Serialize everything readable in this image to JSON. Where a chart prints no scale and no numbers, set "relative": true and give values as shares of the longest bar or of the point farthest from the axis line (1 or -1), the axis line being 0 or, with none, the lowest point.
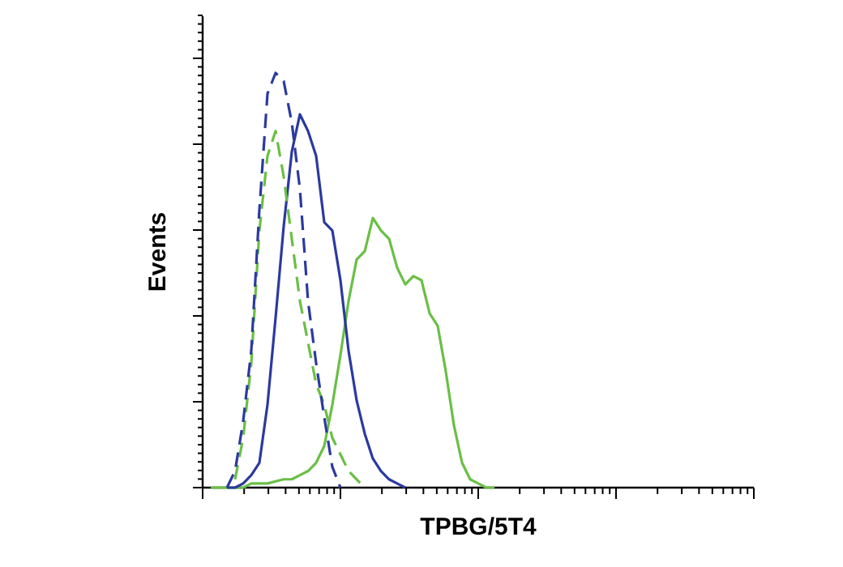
{
  "chart_data": {
    "type": "line",
    "relative": true,
    "xlabel": "TPBG/5T4",
    "ylabel": "Events",
    "categories": [
      null,
      null,
      null,
      null,
      null,
      null,
      null,
      null,
      null,
      null,
      null,
      null,
      null,
      null,
      null,
      null,
      null,
      null,
      null,
      null,
      null,
      null,
      null,
      null,
      null,
      null,
      null,
      null,
      null,
      null,
      null,
      null,
      null,
      null,
      null,
      null,
      null,
      null,
      null,
      null,
      null,
      null,
      null,
      null,
      null,
      null,
      null,
      null,
      null,
      null,
      null,
      null,
      null,
      null,
      null,
      null,
      null,
      null,
      null,
      null,
      null,
      null,
      null,
      null,
      null,
      null,
      null,
      null,
      null
    ],
    "series": [
      {
        "color": "#6abf45",
        "line_style": "solid",
        "values": [
          null,
          0,
          0,
          0,
          0,
          0,
          0.01,
          0.01,
          0.01,
          0.015,
          0.02,
          0.02,
          0.03,
          0.04,
          0.06,
          0.1,
          0.2,
          0.32,
          0.45,
          0.55,
          0.57,
          0.65,
          0.62,
          0.6,
          0.53,
          0.49,
          0.51,
          0.5,
          0.42,
          0.39,
          0.28,
          0.15,
          0.06,
          0.02,
          0.01,
          0,
          0,
          null,
          null,
          null,
          null,
          null,
          null,
          null,
          null,
          null,
          null,
          null,
          null,
          null,
          null,
          null,
          null,
          null,
          null,
          null,
          null,
          null,
          null,
          null,
          null,
          null,
          null,
          null,
          null,
          null,
          null,
          null,
          null
        ]
      },
      {
        "color": "#2b3a9f",
        "line_style": "solid",
        "values": [
          null,
          null,
          null,
          0,
          0,
          0.01,
          0.03,
          0.06,
          0.2,
          0.41,
          0.63,
          0.81,
          0.9,
          0.86,
          0.8,
          0.64,
          0.62,
          0.5,
          0.33,
          0.21,
          0.13,
          0.07,
          0.04,
          0.02,
          0.01,
          0,
          null,
          null,
          null,
          null,
          null,
          null,
          null,
          null,
          null,
          null,
          null,
          null,
          null,
          null,
          null,
          null,
          null,
          null,
          null,
          null,
          null,
          null,
          null,
          null,
          null,
          null,
          null,
          null,
          null,
          null,
          null,
          null,
          null,
          null,
          null,
          null,
          null,
          null,
          null,
          null,
          null,
          null,
          null
        ]
      },
      {
        "color": "#6abf45",
        "line_style": "dashed",
        "values": [
          null,
          null,
          null,
          null,
          0.02,
          0.12,
          0.3,
          0.62,
          0.8,
          0.86,
          0.75,
          0.6,
          0.45,
          0.35,
          0.25,
          0.2,
          0.12,
          0.08,
          0.04,
          0.02,
          0,
          null,
          null,
          null,
          null,
          null,
          null,
          null,
          null,
          null,
          null,
          null,
          null,
          null,
          null,
          null,
          null,
          null,
          null,
          null,
          null,
          null,
          null,
          null,
          null,
          null,
          null,
          null,
          null,
          null,
          null,
          null,
          null,
          null,
          null,
          null,
          null,
          null,
          null,
          null,
          null,
          null,
          null,
          null,
          null,
          null,
          null,
          null,
          null
        ]
      },
      {
        "color": "#2b3a9f",
        "line_style": "dashed",
        "values": [
          null,
          null,
          null,
          0,
          0.04,
          0.16,
          0.33,
          0.67,
          0.95,
          1,
          0.98,
          0.88,
          0.72,
          0.45,
          0.3,
          0.17,
          0.05,
          0,
          null,
          null,
          null,
          null,
          null,
          null,
          null,
          null,
          null,
          null,
          null,
          null,
          null,
          null,
          null,
          null,
          null,
          null,
          null,
          null,
          null,
          null,
          null,
          null,
          null,
          null,
          null,
          null,
          null,
          null,
          null,
          null,
          null,
          null,
          null,
          null,
          null,
          null,
          null,
          null,
          null,
          null,
          null,
          null,
          null,
          null,
          null,
          null,
          null,
          null,
          null
        ]
      }
    ]
  }
}
